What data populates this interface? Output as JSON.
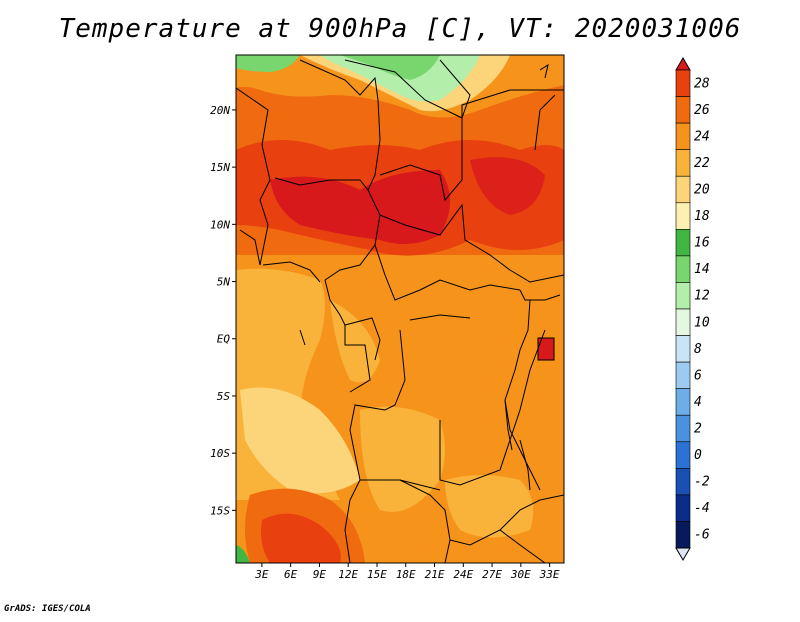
{
  "title": "Temperature at 900hPa [C], VT: 2020031006",
  "credit": "GrADS: IGES/COLA",
  "map": {
    "lat_labels": [
      "20N",
      "15N",
      "10N",
      "5N",
      "EQ",
      "5S",
      "10S",
      "15S"
    ],
    "lon_labels": [
      "3E",
      "6E",
      "9E",
      "12E",
      "15E",
      "18E",
      "21E",
      "24E",
      "27E",
      "30E",
      "33E"
    ],
    "lat_values": [
      20,
      15,
      10,
      5,
      0,
      -5,
      -10,
      -15
    ],
    "lon_values": [
      3,
      6,
      9,
      12,
      15,
      18,
      21,
      24,
      27,
      30,
      33
    ],
    "lat_range": [
      -19.6,
      24.8
    ],
    "lon_range": [
      0.3,
      34.5
    ]
  },
  "colorbar": {
    "labels": [
      "28",
      "26",
      "24",
      "22",
      "20",
      "18",
      "16",
      "14",
      "12",
      "10",
      "8",
      "6",
      "4",
      "2",
      "0",
      "-2",
      "-4",
      "-6"
    ],
    "colors": [
      "#d7191c",
      "#e8400f",
      "#f06a10",
      "#f5931a",
      "#f9b23a",
      "#fcd57a",
      "#fdf0b0",
      "#42b642",
      "#79d56d",
      "#b3eeaa",
      "#e4f8e1",
      "#c9e4f7",
      "#9ccaf0",
      "#6eaee8",
      "#4a92e0",
      "#2b72d4",
      "#1a4fb4",
      "#0b2d8a",
      "#071b5a",
      "#dde4f4"
    ]
  }
}
